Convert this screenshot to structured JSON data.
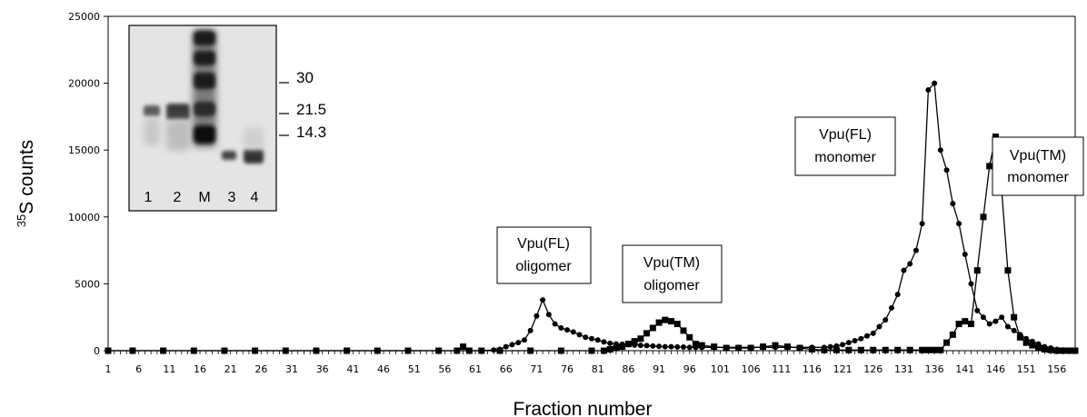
{
  "chart_data": {
    "type": "line",
    "title": "",
    "xlabel": "Fraction number",
    "ylabel": "counts",
    "ylabel_sup": "35",
    "ylabel_main": "S",
    "ylim": [
      0,
      25000
    ],
    "yticks": [
      0,
      5000,
      10000,
      15000,
      20000,
      25000
    ],
    "xlim": [
      1,
      159
    ],
    "xticks": [
      1,
      6,
      11,
      16,
      21,
      26,
      31,
      36,
      41,
      46,
      51,
      56,
      61,
      66,
      71,
      76,
      81,
      86,
      91,
      96,
      101,
      106,
      111,
      116,
      121,
      126,
      131,
      136,
      141,
      146,
      151,
      156
    ],
    "grid": false,
    "series": [
      {
        "name": "Vpu(FL)",
        "marker": "circle",
        "x": [
          1,
          5,
          10,
          15,
          20,
          25,
          30,
          35,
          40,
          45,
          50,
          55,
          58,
          60,
          62,
          64,
          65,
          66,
          67,
          68,
          69,
          70,
          71,
          72,
          73,
          74,
          75,
          76,
          77,
          78,
          79,
          80,
          81,
          82,
          83,
          84,
          85,
          86,
          87,
          88,
          89,
          90,
          91,
          92,
          93,
          94,
          95,
          96,
          97,
          98,
          100,
          102,
          104,
          106,
          108,
          110,
          112,
          114,
          116,
          118,
          119,
          120,
          121,
          122,
          123,
          124,
          125,
          126,
          127,
          128,
          129,
          130,
          131,
          132,
          133,
          134,
          135,
          136,
          137,
          138,
          139,
          140,
          141,
          142,
          143,
          144,
          145,
          146,
          147,
          148,
          149,
          150,
          151,
          152,
          153,
          154,
          155,
          156,
          157,
          158,
          159
        ],
        "values": [
          0,
          0,
          0,
          0,
          0,
          0,
          0,
          0,
          0,
          0,
          0,
          0,
          0,
          0,
          0,
          50,
          100,
          300,
          450,
          600,
          800,
          1500,
          2600,
          3800,
          2700,
          2000,
          1700,
          1550,
          1400,
          1200,
          1000,
          900,
          800,
          650,
          550,
          500,
          480,
          450,
          420,
          400,
          380,
          350,
          320,
          300,
          300,
          280,
          270,
          250,
          250,
          250,
          250,
          250,
          250,
          250,
          250,
          250,
          250,
          250,
          250,
          250,
          300,
          350,
          450,
          600,
          750,
          900,
          1100,
          1300,
          1800,
          2300,
          3200,
          4200,
          6000,
          6500,
          7500,
          9500,
          19500,
          20000,
          15000,
          13500,
          11000,
          9500,
          7200,
          5000,
          3000,
          2500,
          2000,
          2200,
          2500,
          1800,
          1500,
          1200,
          900,
          700,
          500,
          300,
          200,
          100,
          50,
          0,
          0
        ]
      },
      {
        "name": "Vpu(TM)",
        "marker": "square",
        "x": [
          1,
          5,
          10,
          15,
          20,
          25,
          30,
          35,
          40,
          45,
          50,
          55,
          58,
          59,
          60,
          62,
          65,
          70,
          75,
          80,
          82,
          83,
          84,
          85,
          86,
          87,
          88,
          89,
          90,
          91,
          92,
          93,
          94,
          95,
          96,
          97,
          98,
          100,
          102,
          104,
          106,
          108,
          110,
          112,
          114,
          116,
          118,
          120,
          122,
          124,
          126,
          128,
          130,
          132,
          134,
          135,
          136,
          137,
          138,
          139,
          140,
          141,
          142,
          143,
          144,
          145,
          146,
          147,
          148,
          149,
          150,
          151,
          152,
          153,
          154,
          155,
          156,
          157,
          158,
          159
        ],
        "values": [
          0,
          0,
          0,
          0,
          0,
          0,
          0,
          0,
          0,
          0,
          0,
          0,
          0,
          300,
          0,
          0,
          0,
          0,
          0,
          0,
          0,
          100,
          200,
          300,
          500,
          700,
          900,
          1300,
          1700,
          2100,
          2300,
          2200,
          2000,
          1500,
          1000,
          500,
          400,
          300,
          200,
          200,
          200,
          300,
          400,
          300,
          200,
          100,
          50,
          50,
          50,
          50,
          50,
          50,
          50,
          50,
          50,
          50,
          50,
          50,
          600,
          1200,
          2000,
          2200,
          2000,
          6000,
          10000,
          13800,
          16000,
          11900,
          6000,
          2500,
          1000,
          600,
          400,
          200,
          100,
          50,
          0,
          0,
          0,
          0
        ]
      }
    ],
    "annotations": [
      {
        "lines": [
          "Vpu(FL)",
          "oligomer"
        ]
      },
      {
        "lines": [
          "Vpu(TM)",
          "oligomer"
        ]
      },
      {
        "lines": [
          "Vpu(FL)",
          "monomer"
        ]
      },
      {
        "lines": [
          "Vpu(TM)",
          "monomer"
        ]
      }
    ],
    "inset_gel": {
      "lane_labels": [
        "1",
        "2",
        "M",
        "3",
        "4"
      ],
      "mw_markers": [
        "30",
        "21.5",
        "14.3"
      ]
    }
  }
}
